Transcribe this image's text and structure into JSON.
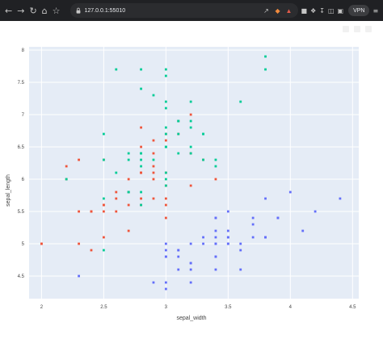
{
  "browser": {
    "url": "127.0.0.1:55010",
    "vpn_label": "VPN",
    "icons": [
      "back-icon",
      "forward-icon",
      "reload-icon",
      "home-icon",
      "bookmark-icon"
    ]
  },
  "chart_data": {
    "type": "scatter",
    "xlabel": "sepal_width",
    "ylabel": "sepal_length",
    "xlim": [
      1.9,
      4.55
    ],
    "ylim": [
      4.15,
      8.05
    ],
    "x_ticks": [
      2,
      2.5,
      3,
      3.5,
      4,
      4.5
    ],
    "y_ticks": [
      4.5,
      5,
      5.5,
      6,
      6.5,
      7,
      7.5,
      8
    ],
    "grid": true,
    "background": "#E5ECF6",
    "colors": [
      "#636EFA",
      "#EF553B",
      "#00CC96"
    ],
    "series": [
      {
        "color": "#636EFA",
        "points": [
          [
            3.5,
            5.1
          ],
          [
            3.0,
            4.9
          ],
          [
            3.2,
            4.7
          ],
          [
            3.1,
            4.6
          ],
          [
            3.6,
            5.0
          ],
          [
            3.9,
            5.4
          ],
          [
            3.4,
            4.6
          ],
          [
            3.4,
            5.0
          ],
          [
            2.9,
            4.4
          ],
          [
            3.1,
            4.9
          ],
          [
            3.7,
            5.4
          ],
          [
            3.4,
            4.8
          ],
          [
            3.0,
            4.8
          ],
          [
            3.0,
            4.3
          ],
          [
            4.0,
            5.8
          ],
          [
            4.4,
            5.7
          ],
          [
            3.9,
            5.4
          ],
          [
            3.5,
            5.1
          ],
          [
            3.8,
            5.7
          ],
          [
            3.8,
            5.1
          ],
          [
            3.4,
            5.4
          ],
          [
            3.7,
            5.1
          ],
          [
            3.6,
            4.6
          ],
          [
            3.3,
            5.1
          ],
          [
            3.4,
            4.8
          ],
          [
            3.0,
            5.0
          ],
          [
            3.4,
            5.0
          ],
          [
            3.5,
            5.2
          ],
          [
            3.4,
            5.2
          ],
          [
            3.2,
            4.7
          ],
          [
            3.1,
            4.8
          ],
          [
            3.4,
            5.4
          ],
          [
            4.1,
            5.2
          ],
          [
            4.2,
            5.5
          ],
          [
            3.1,
            4.9
          ],
          [
            3.2,
            5.0
          ],
          [
            3.5,
            5.5
          ],
          [
            3.6,
            4.9
          ],
          [
            3.0,
            4.4
          ],
          [
            3.4,
            5.1
          ],
          [
            3.5,
            5.0
          ],
          [
            2.3,
            4.5
          ],
          [
            3.2,
            4.4
          ],
          [
            3.5,
            5.0
          ],
          [
            3.8,
            5.1
          ],
          [
            3.0,
            4.8
          ],
          [
            3.8,
            5.1
          ],
          [
            3.2,
            4.6
          ],
          [
            3.7,
            5.3
          ],
          [
            3.3,
            5.0
          ]
        ]
      },
      {
        "color": "#EF553B",
        "points": [
          [
            2.0,
            5.0
          ],
          [
            2.2,
            6.0
          ],
          [
            2.2,
            6.2
          ],
          [
            2.3,
            6.3
          ],
          [
            2.3,
            5.5
          ],
          [
            2.3,
            5.0
          ],
          [
            2.4,
            4.9
          ],
          [
            2.4,
            5.5
          ],
          [
            2.4,
            5.5
          ],
          [
            2.5,
            5.5
          ],
          [
            2.5,
            5.1
          ],
          [
            2.5,
            5.6
          ],
          [
            2.5,
            6.3
          ],
          [
            2.6,
            5.7
          ],
          [
            2.6,
            5.5
          ],
          [
            2.6,
            5.8
          ],
          [
            2.7,
            5.8
          ],
          [
            2.7,
            5.2
          ],
          [
            2.7,
            6.0
          ],
          [
            2.7,
            5.6
          ],
          [
            2.8,
            6.5
          ],
          [
            2.8,
            5.7
          ],
          [
            2.8,
            6.1
          ],
          [
            2.8,
            6.8
          ],
          [
            2.8,
            6.1
          ],
          [
            2.9,
            6.6
          ],
          [
            2.9,
            6.4
          ],
          [
            2.9,
            6.2
          ],
          [
            2.9,
            6.0
          ],
          [
            2.9,
            5.7
          ],
          [
            3.0,
            5.9
          ],
          [
            3.0,
            5.6
          ],
          [
            3.0,
            6.1
          ],
          [
            3.0,
            5.4
          ],
          [
            3.0,
            6.7
          ],
          [
            3.0,
            5.7
          ],
          [
            3.1,
            6.9
          ],
          [
            3.1,
            6.7
          ],
          [
            3.2,
            6.4
          ],
          [
            3.2,
            7.0
          ],
          [
            3.3,
            6.3
          ],
          [
            3.4,
            6.0
          ],
          [
            2.0,
            5.0
          ],
          [
            2.7,
            5.8
          ],
          [
            2.8,
            5.6
          ],
          [
            2.9,
            6.1
          ],
          [
            3.0,
            6.6
          ],
          [
            2.5,
            5.6
          ],
          [
            2.8,
            6.1
          ],
          [
            3.2,
            5.9
          ]
        ]
      },
      {
        "color": "#00CC96",
        "points": [
          [
            3.3,
            6.3
          ],
          [
            2.7,
            5.8
          ],
          [
            3.0,
            7.1
          ],
          [
            2.9,
            6.3
          ],
          [
            3.0,
            6.5
          ],
          [
            3.0,
            7.6
          ],
          [
            2.5,
            4.9
          ],
          [
            2.9,
            7.3
          ],
          [
            2.5,
            6.7
          ],
          [
            3.6,
            7.2
          ],
          [
            3.2,
            6.5
          ],
          [
            2.7,
            6.4
          ],
          [
            3.0,
            6.8
          ],
          [
            2.5,
            5.7
          ],
          [
            2.8,
            5.8
          ],
          [
            3.2,
            6.4
          ],
          [
            3.0,
            6.5
          ],
          [
            3.8,
            7.7
          ],
          [
            2.6,
            7.7
          ],
          [
            2.2,
            6.0
          ],
          [
            3.2,
            6.9
          ],
          [
            2.8,
            5.6
          ],
          [
            2.8,
            7.7
          ],
          [
            2.7,
            6.3
          ],
          [
            3.3,
            6.7
          ],
          [
            3.2,
            7.2
          ],
          [
            2.8,
            6.2
          ],
          [
            3.0,
            6.1
          ],
          [
            2.8,
            6.4
          ],
          [
            3.0,
            7.2
          ],
          [
            2.8,
            7.4
          ],
          [
            3.8,
            7.9
          ],
          [
            2.8,
            6.4
          ],
          [
            2.8,
            6.3
          ],
          [
            2.6,
            6.1
          ],
          [
            3.0,
            7.7
          ],
          [
            3.4,
            6.3
          ],
          [
            3.1,
            6.4
          ],
          [
            3.0,
            6.0
          ],
          [
            3.1,
            6.9
          ],
          [
            3.1,
            6.7
          ],
          [
            3.1,
            6.9
          ],
          [
            2.7,
            5.8
          ],
          [
            3.2,
            6.8
          ],
          [
            3.3,
            6.7
          ],
          [
            3.0,
            6.7
          ],
          [
            2.5,
            6.3
          ],
          [
            3.0,
            6.5
          ],
          [
            3.4,
            6.2
          ],
          [
            3.0,
            5.9
          ]
        ]
      }
    ]
  }
}
